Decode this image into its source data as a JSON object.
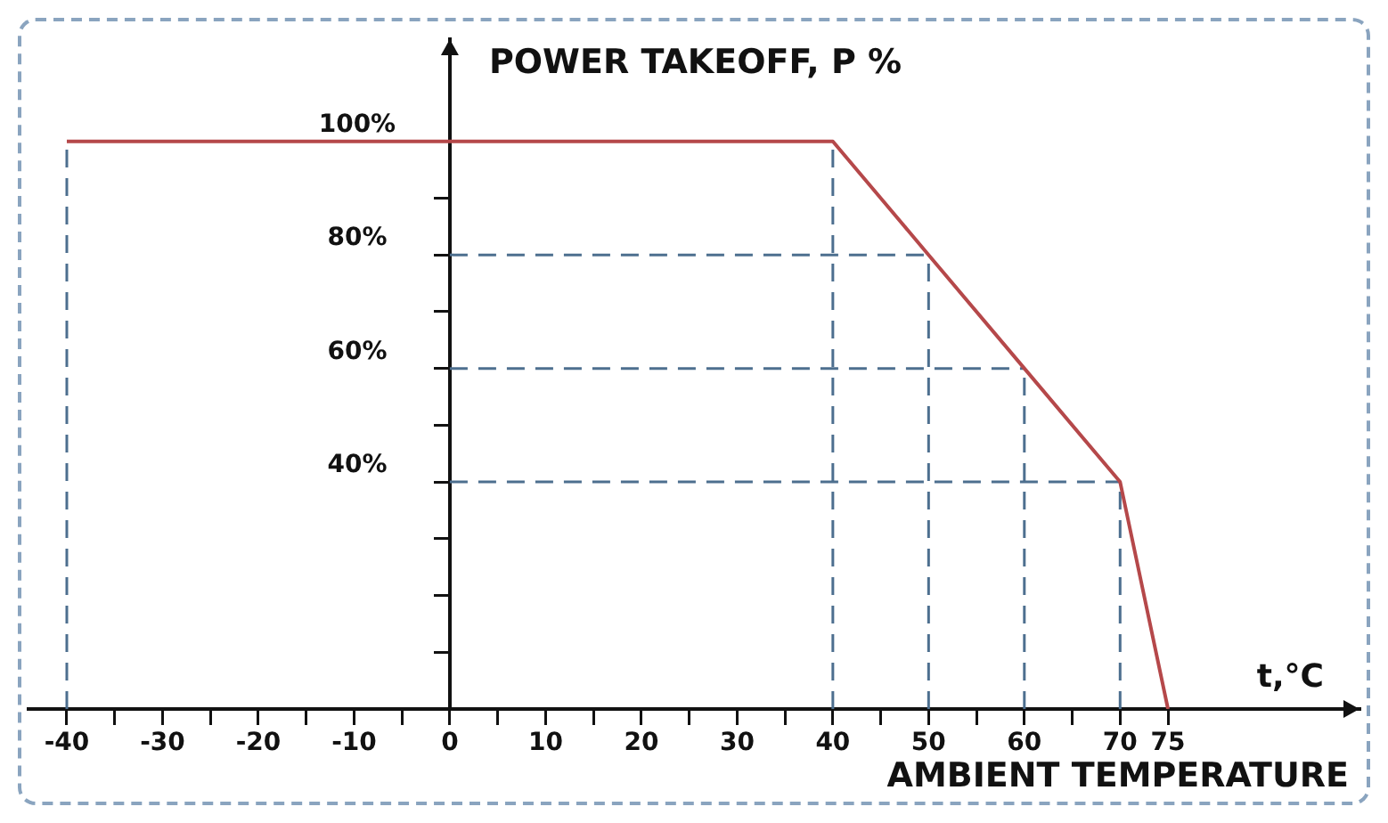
{
  "chart_data": {
    "type": "line",
    "ylabel": "POWER TAKEOFF, P %",
    "xlabel": "AMBIENT TEMPERATURE",
    "annotations": [
      "t,°C"
    ],
    "series": [
      {
        "color": "#b5484a",
        "x": [
          -40,
          40,
          50,
          60,
          70,
          75
        ],
        "values": [
          100,
          100,
          80,
          60,
          40,
          0
        ]
      }
    ],
    "ref_lines": [
      {
        "axis": "x",
        "value": -40,
        "color": "#4d6f8f",
        "line_style": "dashed"
      },
      {
        "axis": "x",
        "value": 40,
        "color": "#4d6f8f",
        "line_style": "dashed"
      },
      {
        "axis": "x",
        "value": 50,
        "color": "#4d6f8f",
        "line_style": "dashed"
      },
      {
        "axis": "x",
        "value": 60,
        "color": "#4d6f8f",
        "line_style": "dashed"
      },
      {
        "axis": "x",
        "value": 70,
        "color": "#4d6f8f",
        "line_style": "dashed"
      },
      {
        "axis": "y",
        "value": 80,
        "color": "#4d6f8f",
        "line_style": "dashed"
      },
      {
        "axis": "y",
        "value": 60,
        "color": "#4d6f8f",
        "line_style": "dashed"
      },
      {
        "axis": "y",
        "value": 40,
        "color": "#4d6f8f",
        "line_style": "dashed"
      }
    ],
    "xlim": [
      -44,
      95
    ],
    "ylim": [
      0,
      118
    ],
    "xticks": [
      -40,
      {
        "value": -35,
        "label": null
      },
      -30,
      {
        "value": -25,
        "label": null
      },
      -20,
      {
        "value": -15,
        "label": null
      },
      -10,
      {
        "value": -5,
        "label": null
      },
      0,
      {
        "value": 5,
        "label": null
      },
      10,
      {
        "value": 15,
        "label": null
      },
      20,
      {
        "value": 25,
        "label": null
      },
      30,
      {
        "value": 35,
        "label": null
      },
      40,
      {
        "value": 45,
        "label": null
      },
      50,
      {
        "value": 55,
        "label": null
      },
      60,
      {
        "value": 65,
        "label": null
      },
      70,
      75
    ],
    "yticks": [
      {
        "value": 10,
        "label": null
      },
      {
        "value": 20,
        "label": null
      },
      {
        "value": 30,
        "label": null
      },
      {
        "value": 40,
        "label": "40%"
      },
      {
        "value": 50,
        "label": null
      },
      {
        "value": 60,
        "label": "60%"
      },
      {
        "value": 70,
        "label": null
      },
      {
        "value": 80,
        "label": "80%"
      },
      {
        "value": 90,
        "label": null
      },
      {
        "value": 100,
        "label": "100%"
      }
    ],
    "grid": false,
    "legend": false,
    "marker": "none",
    "line_style": "solid"
  }
}
